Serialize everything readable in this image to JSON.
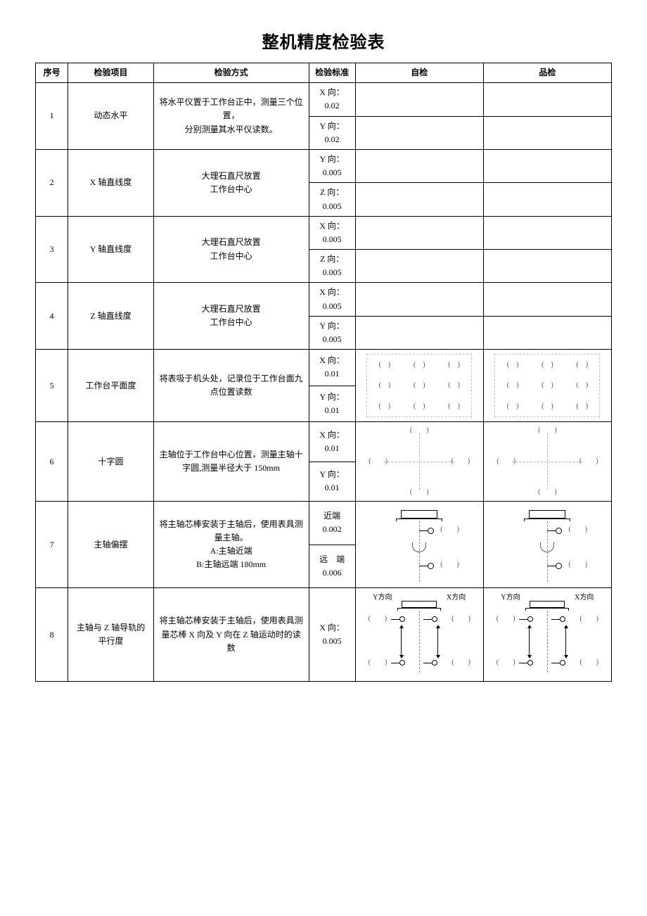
{
  "title": "整机精度检验表",
  "headers": {
    "seq": "序号",
    "item": "检验项目",
    "method": "检验方式",
    "std": "检验标准",
    "self": "自检",
    "qc": "品检"
  },
  "labels": {
    "paren": "(　)",
    "paren_wide": "(　　)",
    "y_dir": "Y方向",
    "x_dir": "X方向"
  },
  "rows": [
    {
      "seq": "1",
      "item": "动态水平",
      "method": "将水平仪置于工作台正中，测量三个位置，\n分别测量其水平仪读数。",
      "std_a": "X 向：\n0.02",
      "std_b": "Y 向：\n0.02"
    },
    {
      "seq": "2",
      "item": "X 轴直线度",
      "method": "大理石直尺放置\n工作台中心",
      "std_a": "Y 向：\n0.005",
      "std_b": "Z 向：\n0.005"
    },
    {
      "seq": "3",
      "item": "Y 轴直线度",
      "method": "大理石直尺放置\n工作台中心",
      "std_a": "X 向：\n0.005",
      "std_b": "Z 向：\n0.005"
    },
    {
      "seq": "4",
      "item": "Z 轴直线度",
      "method": "大理石直尺放置\n工作台中心",
      "std_a": "X 向：\n0.005",
      "std_b": "Y 向：\n0.005"
    },
    {
      "seq": "5",
      "item": "工作台平面度",
      "method": "将表吸于机头处，记录位于工作台面九点位置读数",
      "std_a": "X 向：\n0.01",
      "std_b": "Y 向：\n0.01"
    },
    {
      "seq": "6",
      "item": "十字圆",
      "method": "主轴位于工作台中心位置，测量主轴十字圆,测量半径大于 150mm",
      "std_a": "X 向：\n0.01",
      "std_b": "Y 向：\n0.01"
    },
    {
      "seq": "7",
      "item": "主轴偏摆",
      "method": "将主轴芯棒安装于主轴后，使用表具测量主轴。\nA:主轴近端\nB:主轴远端 180mm",
      "std_a": "近端\n0.002",
      "std_b": "远　端\n0.006"
    },
    {
      "seq": "8",
      "item": "主轴与 Z 轴导轨的平行度",
      "method": "将主轴芯棒安装于主轴后，使用表具测量芯棒 X 向及 Y 向在 Z 轴运动时的读数",
      "std_a": "X 向：\n0.005"
    }
  ]
}
